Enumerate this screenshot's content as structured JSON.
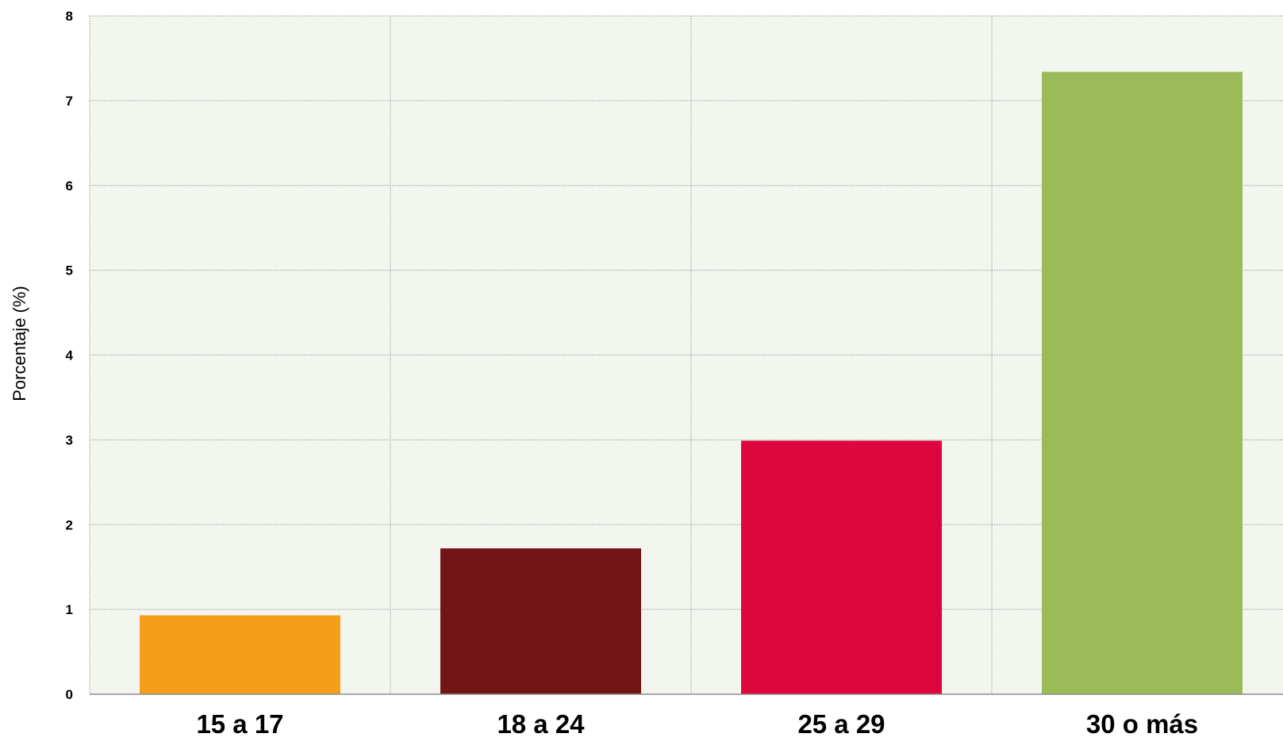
{
  "chart_data": {
    "type": "bar",
    "title": "",
    "xlabel": "",
    "ylabel": "Porcentaje (%)",
    "ylim": [
      0,
      8
    ],
    "yticks": [
      0,
      1,
      2,
      3,
      4,
      5,
      6,
      7,
      8
    ],
    "grid": true,
    "legend": "none",
    "plot_background": "#f3f6ef",
    "categories": [
      "15 a 17",
      "18 a 24",
      "25 a 29",
      "30 o más"
    ],
    "values": [
      0.93,
      1.72,
      2.99,
      7.34
    ],
    "colors": [
      "#f59e1c",
      "#721517",
      "#dd073d",
      "#9bbb59"
    ]
  }
}
